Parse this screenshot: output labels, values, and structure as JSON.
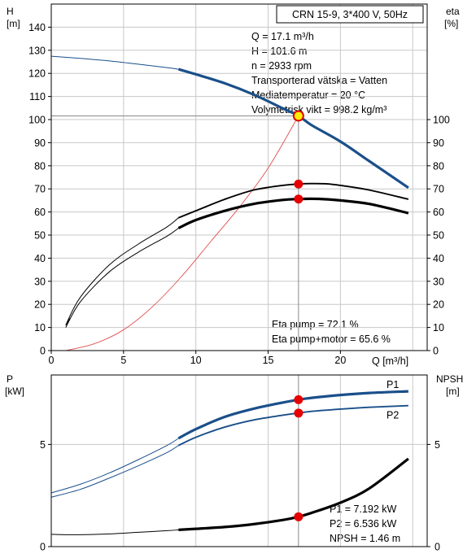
{
  "chart_data": [
    {
      "type": "line",
      "title_box": "CRN 15-9, 3*400 V, 50Hz",
      "y_left_label": [
        "H",
        "[m]"
      ],
      "y_right_label": [
        "eta",
        "[%]"
      ],
      "xlabel": "Q [m³/h]",
      "xlim": [
        0,
        26
      ],
      "ylim": [
        0,
        150
      ],
      "x_ticks": [
        0,
        5,
        10,
        15,
        20
      ],
      "y_left_ticks": [
        0,
        10,
        20,
        30,
        40,
        50,
        60,
        70,
        80,
        90,
        100,
        110,
        120,
        130,
        140
      ],
      "y_right_ticks": [
        0,
        10,
        20,
        30,
        40,
        50,
        60,
        70,
        80,
        90,
        100
      ],
      "grid": true,
      "info_lines": [
        "Q = 17.1 m³/h",
        "H = 101.6 m",
        "n = 2933 rpm",
        "Transporterad vätska = Vatten",
        "Mediatemperatur = 20 °C",
        "Volymetrisk vikt = 998.2 kg/m³"
      ],
      "eta_lines": [
        "Eta pump = 72.1 %",
        "Eta pump+motor = 65.6 %"
      ],
      "operating_point": {
        "q": 17.1,
        "h": 101.6,
        "eta_pump": 72.1,
        "eta_pump_motor": 65.6
      },
      "series": [
        {
          "role": "head",
          "x": [
            0,
            2,
            4,
            6,
            8,
            8.8,
            10,
            12,
            14,
            16,
            17.1,
            18,
            20,
            22,
            24.7
          ],
          "values": [
            127.4,
            126.5,
            125.4,
            124.0,
            122.5,
            121.8,
            119.6,
            115.7,
            110.8,
            104.9,
            101.6,
            97.6,
            90.5,
            82.0,
            70.5
          ],
          "color": "#1a4f8a"
        },
        {
          "role": "eta_pump",
          "x": [
            1,
            2,
            4,
            6,
            8,
            8.8,
            10,
            12,
            14,
            16,
            17.1,
            18,
            19,
            20,
            22,
            24.7
          ],
          "values": [
            11,
            23,
            37,
            46,
            53.5,
            57.5,
            60.5,
            65.5,
            69.5,
            71.5,
            72.1,
            72.3,
            72.2,
            71.5,
            69.5,
            65.5
          ],
          "color": "#000000"
        },
        {
          "role": "eta_pump_motor",
          "x": [
            1,
            2,
            4,
            6,
            8,
            8.8,
            10,
            12,
            14,
            16,
            17.1,
            18,
            19,
            20,
            22,
            24.7
          ],
          "values": [
            10,
            21,
            34,
            42.5,
            49.5,
            53,
            56.5,
            60.5,
            63.5,
            65.2,
            65.6,
            65.7,
            65.5,
            65,
            63.5,
            59.5
          ],
          "color": "#000000"
        },
        {
          "role": "system_curve",
          "x": [
            1,
            3,
            5,
            7,
            9,
            11,
            13,
            15,
            17.1
          ],
          "values": [
            0,
            3,
            9,
            19,
            32,
            47,
            62,
            79,
            101.6
          ],
          "color": "#e05050"
        }
      ]
    },
    {
      "type": "line",
      "y_left_label": [
        "P",
        "[kW]"
      ],
      "y_right_label": [
        "NPSH",
        "[m]"
      ],
      "xlim": [
        0,
        26
      ],
      "ylim": [
        0,
        8.4
      ],
      "y_left_ticks": [
        0,
        5
      ],
      "y_right_ticks": [
        0,
        5
      ],
      "grid": true,
      "info_lines": [
        "P1 = 7.192 kW",
        "P2 = 6.536 kW",
        "NPSH = 1.46 m"
      ],
      "operating_point": {
        "q": 17.1,
        "p1": 7.192,
        "p2": 6.536,
        "npsh": 1.46
      },
      "series": [
        {
          "name": "P1",
          "x": [
            0,
            2,
            4,
            6,
            8,
            8.8,
            10,
            12,
            14,
            16,
            17.1,
            18,
            20,
            22,
            24.7
          ],
          "values": [
            2.63,
            3.05,
            3.6,
            4.25,
            4.95,
            5.3,
            5.75,
            6.35,
            6.75,
            7.05,
            7.19,
            7.28,
            7.42,
            7.52,
            7.6
          ],
          "color": "#1a4f8a"
        },
        {
          "name": "P2",
          "x": [
            0,
            2,
            4,
            6,
            8,
            8.8,
            10,
            12,
            14,
            16,
            17.1,
            18,
            20,
            22,
            24.7
          ],
          "values": [
            2.42,
            2.8,
            3.35,
            3.95,
            4.6,
            4.95,
            5.35,
            5.85,
            6.2,
            6.43,
            6.54,
            6.62,
            6.73,
            6.82,
            6.9
          ],
          "color": "#1a4f8a"
        },
        {
          "role": "npsh",
          "x": [
            0,
            2,
            4,
            6,
            8,
            8.8,
            10,
            12,
            14,
            16,
            17.1,
            18,
            20,
            22,
            24.7
          ],
          "values": [
            0.6,
            0.58,
            0.62,
            0.7,
            0.78,
            0.82,
            0.87,
            0.96,
            1.1,
            1.3,
            1.46,
            1.65,
            2.15,
            2.85,
            4.3
          ],
          "color": "#000000"
        }
      ]
    }
  ]
}
